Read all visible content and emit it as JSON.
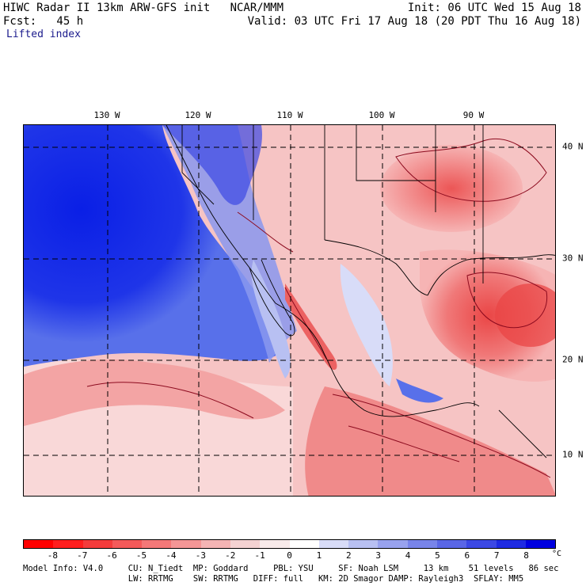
{
  "header": {
    "line1_left": "HIWC Radar II 13km ARW-GFS init   NCAR/MMM",
    "line1_right": "Init: 06 UTC Wed 15 Aug 18",
    "line2_left": "Fcst:   45 h",
    "line2_right": "Valid: 03 UTC Fri 17 Aug 18 (20 PDT Thu 16 Aug 18)",
    "field": "Lifted index"
  },
  "map": {
    "lon_labels": [
      "130 W",
      "120 W",
      "110 W",
      "100 W",
      "90 W"
    ],
    "lat_labels": [
      "40 N",
      "30 N",
      "20 N",
      "10 N"
    ],
    "colors": {
      "ocean_stable": "#0a1fe6",
      "stable_mid": "#5870ea",
      "stable_light": "#c6cdf4",
      "neutral": "#fbe9e9",
      "unstable_light": "#f6b4b4",
      "unstable_mid": "#f07878",
      "unstable_strong": "#ea4646",
      "contour": "#8c0a1e",
      "border": "#000000"
    }
  },
  "colorbar": {
    "colors": [
      "#ff0000",
      "#ff1e1e",
      "#f43c3c",
      "#f45a5a",
      "#f47878",
      "#f49696",
      "#f4b4b4",
      "#f4d2d2",
      "#f8eaea",
      "#ffffff",
      "#d8dcf8",
      "#b8c0f2",
      "#98a2ee",
      "#7884ea",
      "#5a66e6",
      "#3c48e4",
      "#1e2ae2",
      "#0000e0"
    ],
    "ticks": [
      "-8",
      "-7",
      "-6",
      "-5",
      "-4",
      "-3",
      "-2",
      "-1",
      "0",
      "1",
      "2",
      "3",
      "4",
      "5",
      "6",
      "7",
      "8"
    ],
    "unit": "°C"
  },
  "model_info": {
    "line1": "Model Info: V4.0     CU: N_Tiedt  MP: Goddard     PBL: YSU     SF: Noah LSM     13 km    51 levels   86 sec",
    "line2": "                     LW: RRTMG    SW: RRTMG   DIFF: full   KM: 2D Smagor DAMP: Rayleigh3  SFLAY: MM5"
  }
}
